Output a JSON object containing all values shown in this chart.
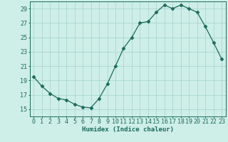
{
  "x": [
    0,
    1,
    2,
    3,
    4,
    5,
    6,
    7,
    8,
    9,
    10,
    11,
    12,
    13,
    14,
    15,
    16,
    17,
    18,
    19,
    20,
    21,
    22,
    23
  ],
  "y": [
    19.5,
    18.2,
    17.2,
    16.5,
    16.3,
    15.7,
    15.3,
    15.2,
    16.5,
    18.5,
    21.0,
    23.5,
    25.0,
    27.0,
    27.2,
    28.5,
    29.5,
    29.0,
    29.5,
    29.0,
    28.5,
    26.5,
    24.3,
    22.0
  ],
  "line_color": "#1a6b5a",
  "marker": "D",
  "marker_size": 2.5,
  "bg_color": "#ceeee8",
  "grid_color": "#aad8d0",
  "xlabel": "Humidex (Indice chaleur)",
  "ylim": [
    14,
    30
  ],
  "xlim": [
    -0.5,
    23.5
  ],
  "yticks": [
    15,
    17,
    19,
    21,
    23,
    25,
    27,
    29
  ],
  "xticks": [
    0,
    1,
    2,
    3,
    4,
    5,
    6,
    7,
    8,
    9,
    10,
    11,
    12,
    13,
    14,
    15,
    16,
    17,
    18,
    19,
    20,
    21,
    22,
    23
  ],
  "xlabel_fontsize": 6.5,
  "tick_fontsize": 6.0
}
